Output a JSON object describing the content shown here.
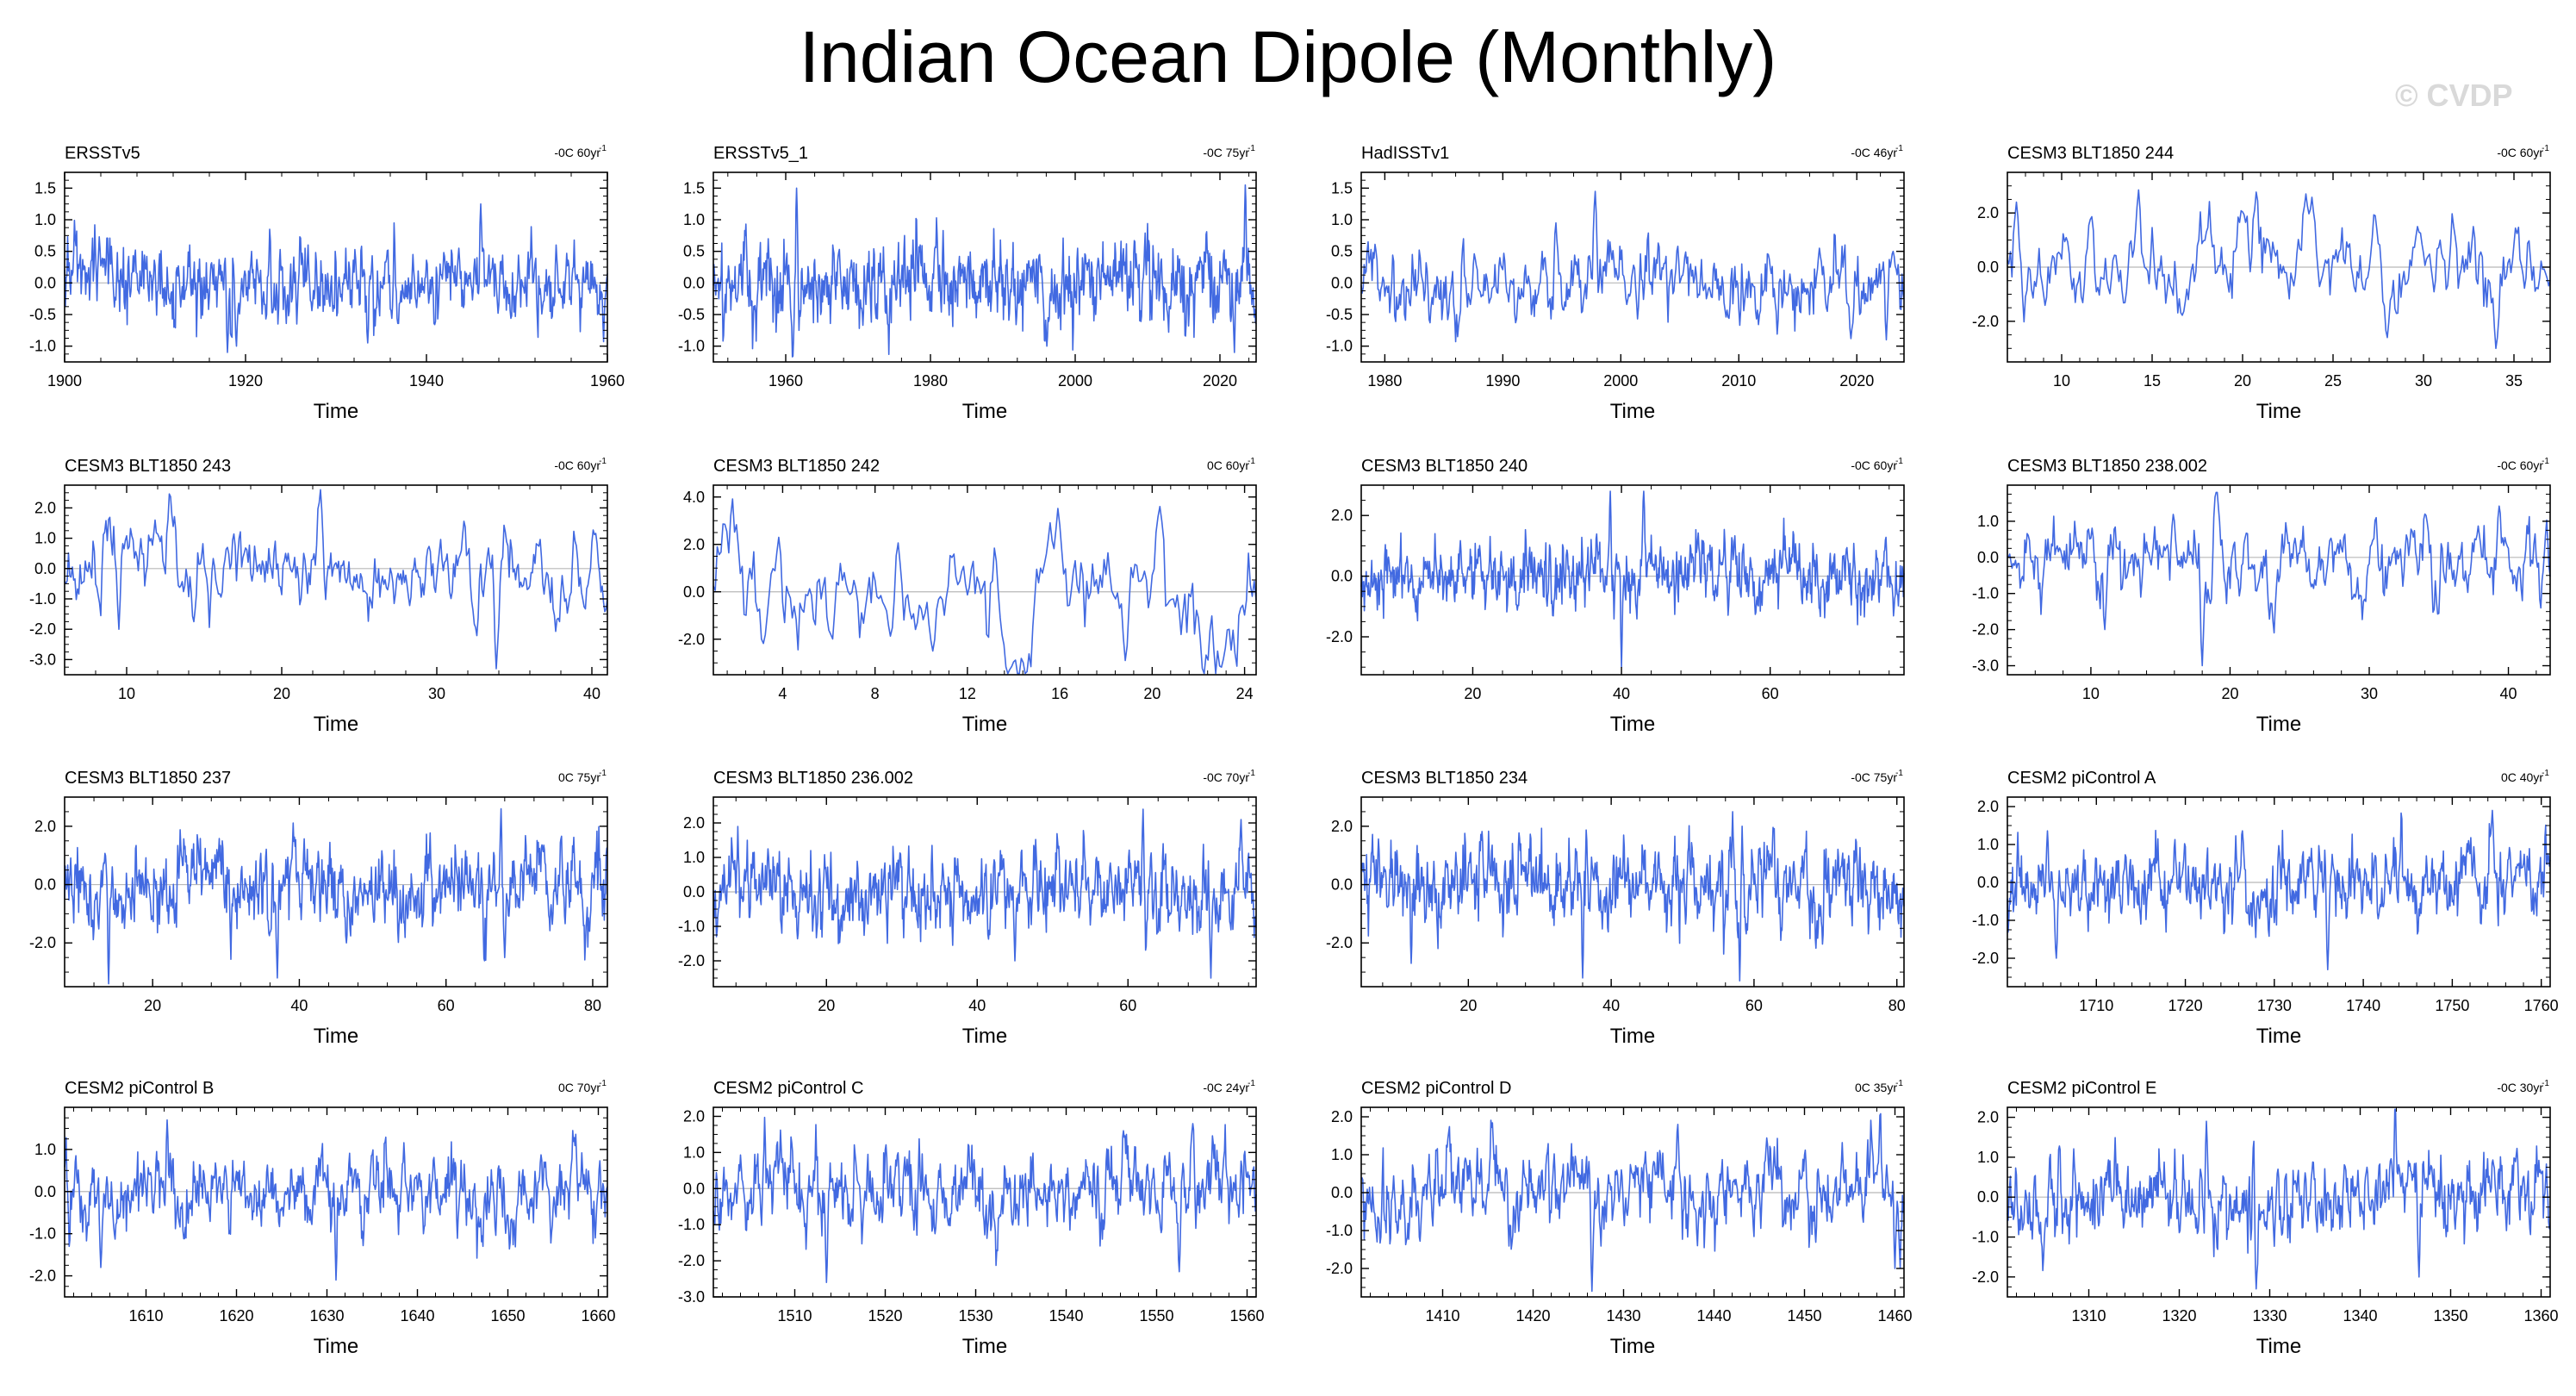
{
  "title": "Indian Ocean Dipole (Monthly)",
  "watermark": "© CVDP",
  "line_color": "#4169e1",
  "chart_data": [
    {
      "type": "line",
      "title": "ERSSTv5",
      "trend": "-0C 60yr",
      "trend_unit_sup": "-1",
      "xlabel": "Time",
      "xlim": [
        1900,
        1960
      ],
      "xticks": [
        1900,
        1920,
        1940,
        1960
      ],
      "ylim": [
        -1.25,
        1.75
      ],
      "yticks": [
        -1.0,
        -0.5,
        0.0,
        0.5,
        1.0,
        1.5
      ],
      "series_seed": 1,
      "amplitude": 0.35,
      "smooth": 0.45,
      "peaks": [
        {
          "x": 1933.5,
          "y": -0.95
        },
        {
          "x": 1946.0,
          "y": 1.25
        },
        {
          "x": 1918.0,
          "y": -1.1
        },
        {
          "x": 1919.0,
          "y": -1.0
        }
      ],
      "x": [],
      "values": []
    },
    {
      "type": "line",
      "title": "ERSSTv5_1",
      "trend": "-0C 75yr",
      "trend_unit_sup": "-1",
      "xlabel": "Time",
      "xlim": [
        1950,
        2025
      ],
      "xticks": [
        1960,
        1980,
        2000,
        2020
      ],
      "ylim": [
        -1.25,
        1.75
      ],
      "yticks": [
        -1.0,
        -0.5,
        0.0,
        0.5,
        1.0,
        1.5
      ],
      "series_seed": 2,
      "amplitude": 0.35,
      "smooth": 0.45,
      "peaks": [
        {
          "x": 2023.5,
          "y": 1.55
        },
        {
          "x": 2022.0,
          "y": -1.1
        },
        {
          "x": 1961.5,
          "y": 1.5
        }
      ],
      "x": [],
      "values": []
    },
    {
      "type": "line",
      "title": "HadISSTv1",
      "trend": "-0C 46yr",
      "trend_unit_sup": "-1",
      "xlabel": "Time",
      "xlim": [
        1978,
        2024
      ],
      "xticks": [
        1980,
        1990,
        2000,
        2010,
        2020
      ],
      "ylim": [
        -1.25,
        1.75
      ],
      "yticks": [
        -1.0,
        -0.5,
        0.0,
        0.5,
        1.0,
        1.5
      ],
      "series_seed": 3,
      "amplitude": 0.3,
      "smooth": 0.55,
      "peaks": [
        {
          "x": 1997.8,
          "y": 1.45
        },
        {
          "x": 1994.5,
          "y": 0.95
        },
        {
          "x": 2022.5,
          "y": -0.9
        }
      ],
      "x": [],
      "values": []
    },
    {
      "type": "line",
      "title": "CESM3 BLT1850 244",
      "trend": "-0C 60yr",
      "trend_unit_sup": "-1",
      "xlabel": "Time",
      "xlim": [
        7,
        37
      ],
      "xticks": [
        10,
        15,
        20,
        25,
        30,
        35
      ],
      "ylim": [
        -3.5,
        3.5
      ],
      "yticks": [
        -2.0,
        0.0,
        2.0
      ],
      "series_seed": 4,
      "amplitude": 0.8,
      "smooth": 0.8,
      "peaks": [
        {
          "x": 23.5,
          "y": 2.7
        },
        {
          "x": 34.0,
          "y": -3.0
        },
        {
          "x": 7.5,
          "y": 2.4
        },
        {
          "x": 28.0,
          "y": -2.6
        }
      ],
      "x": [],
      "values": []
    },
    {
      "type": "line",
      "title": "CESM3 BLT1850 243",
      "trend": "-0C 60yr",
      "trend_unit_sup": "-1",
      "xlabel": "Time",
      "xlim": [
        6,
        41
      ],
      "xticks": [
        10,
        20,
        30,
        40
      ],
      "ylim": [
        -3.5,
        2.75
      ],
      "yticks": [
        -3.0,
        -2.0,
        -1.0,
        0.0,
        1.0,
        2.0
      ],
      "series_seed": 5,
      "amplitude": 0.65,
      "smooth": 0.75,
      "peaks": [
        {
          "x": 22.5,
          "y": 2.6
        },
        {
          "x": 33.8,
          "y": -3.3
        },
        {
          "x": 9.5,
          "y": -2.0
        }
      ],
      "x": [],
      "values": []
    },
    {
      "type": "line",
      "title": "CESM3 BLT1850 242",
      "trend": "0C 60yr",
      "trend_unit_sup": "-1",
      "xlabel": "Time",
      "xlim": [
        1,
        24.5
      ],
      "xticks": [
        4,
        8,
        12,
        16,
        20,
        24
      ],
      "ylim": [
        -3.5,
        4.5
      ],
      "yticks": [
        -2.0,
        0.0,
        2.0,
        4.0
      ],
      "series_seed": 6,
      "amplitude": 1.1,
      "smooth": 0.9,
      "peaks": [
        {
          "x": 20.3,
          "y": 3.6
        },
        {
          "x": 18.8,
          "y": -2.9
        },
        {
          "x": 10.5,
          "y": -2.5
        },
        {
          "x": 3.8,
          "y": 2.3
        }
      ],
      "x": [],
      "values": []
    },
    {
      "type": "line",
      "title": "CESM3 BLT1850 240",
      "trend": "-0C 60yr",
      "trend_unit_sup": "-1",
      "xlabel": "Time",
      "xlim": [
        5,
        78
      ],
      "xticks": [
        20,
        40,
        60
      ],
      "ylim": [
        -3.25,
        3.0
      ],
      "yticks": [
        -2.0,
        0.0,
        2.0
      ],
      "series_seed": 7,
      "amplitude": 0.6,
      "smooth": 0.55,
      "peaks": [
        {
          "x": 38.5,
          "y": 2.8
        },
        {
          "x": 43.0,
          "y": 2.8
        },
        {
          "x": 40.0,
          "y": -3.0
        }
      ],
      "x": [],
      "values": []
    },
    {
      "type": "line",
      "title": "CESM3 BLT1850 238.002",
      "trend": "-0C 60yr",
      "trend_unit_sup": "-1",
      "xlabel": "Time",
      "xlim": [
        4,
        43
      ],
      "xticks": [
        10,
        20,
        30,
        40
      ],
      "ylim": [
        -3.25,
        2.0
      ],
      "yticks": [
        -3.0,
        -2.0,
        -1.0,
        0.0,
        1.0
      ],
      "series_seed": 8,
      "amplitude": 0.55,
      "smooth": 0.7,
      "peaks": [
        {
          "x": 18.0,
          "y": -3.0
        },
        {
          "x": 19.0,
          "y": 1.8
        },
        {
          "x": 11.0,
          "y": -2.0
        }
      ],
      "x": [],
      "values": []
    },
    {
      "type": "line",
      "title": "CESM3 BLT1850 237",
      "trend": "0C 75yr",
      "trend_unit_sup": "-1",
      "xlabel": "Time",
      "xlim": [
        8,
        82
      ],
      "xticks": [
        20,
        40,
        60,
        80
      ],
      "ylim": [
        -3.5,
        3.0
      ],
      "yticks": [
        -2.0,
        0.0,
        2.0
      ],
      "series_seed": 9,
      "amplitude": 0.75,
      "smooth": 0.6,
      "peaks": [
        {
          "x": 67.5,
          "y": 2.6
        },
        {
          "x": 14.0,
          "y": -3.4
        },
        {
          "x": 37.0,
          "y": -3.2
        },
        {
          "x": 68.0,
          "y": -2.5
        }
      ],
      "x": [],
      "values": []
    },
    {
      "type": "line",
      "title": "CESM3 BLT1850 236.002",
      "trend": "-0C 70yr",
      "trend_unit_sup": "-1",
      "xlabel": "Time",
      "xlim": [
        5,
        77
      ],
      "xticks": [
        20,
        40,
        60
      ],
      "ylim": [
        -2.75,
        2.75
      ],
      "yticks": [
        -2.0,
        -1.0,
        0.0,
        1.0,
        2.0
      ],
      "series_seed": 10,
      "amplitude": 0.6,
      "smooth": 0.6,
      "peaks": [
        {
          "x": 62.0,
          "y": 2.4
        },
        {
          "x": 71.0,
          "y": -2.5
        },
        {
          "x": 45.0,
          "y": -2.0
        },
        {
          "x": 75.0,
          "y": 2.1
        }
      ],
      "x": [],
      "values": []
    },
    {
      "type": "line",
      "title": "CESM3 BLT1850 234",
      "trend": "-0C 75yr",
      "trend_unit_sup": "-1",
      "xlabel": "Time",
      "xlim": [
        5,
        81
      ],
      "xticks": [
        20,
        40,
        60,
        80
      ],
      "ylim": [
        -3.5,
        3.0
      ],
      "yticks": [
        -2.0,
        0.0,
        2.0
      ],
      "series_seed": 11,
      "amplitude": 0.75,
      "smooth": 0.6,
      "peaks": [
        {
          "x": 58.0,
          "y": -3.3
        },
        {
          "x": 57.0,
          "y": 2.5
        },
        {
          "x": 36.0,
          "y": -3.2
        },
        {
          "x": 12.0,
          "y": -2.7
        }
      ],
      "x": [],
      "values": []
    },
    {
      "type": "line",
      "title": "CESM2 piControl A",
      "trend": "0C 40yr",
      "trend_unit_sup": "-1",
      "xlabel": "Time",
      "xlim": [
        1700,
        1761
      ],
      "xticks": [
        1710,
        1720,
        1730,
        1740,
        1750,
        1760
      ],
      "ylim": [
        -2.75,
        2.25
      ],
      "yticks": [
        -2.0,
        -1.0,
        0.0,
        1.0,
        2.0
      ],
      "series_seed": 12,
      "amplitude": 0.55,
      "smooth": 0.6,
      "peaks": [
        {
          "x": 1754.5,
          "y": 1.9
        },
        {
          "x": 1705.5,
          "y": -2.0
        },
        {
          "x": 1736.0,
          "y": -2.3
        }
      ],
      "x": [],
      "values": []
    },
    {
      "type": "line",
      "title": "CESM2 piControl B",
      "trend": "0C 70yr",
      "trend_unit_sup": "-1",
      "xlabel": "Time",
      "xlim": [
        1601,
        1661
      ],
      "xticks": [
        1610,
        1620,
        1630,
        1640,
        1650,
        1660
      ],
      "ylim": [
        -2.5,
        2.0
      ],
      "yticks": [
        -2.0,
        -1.0,
        0.0,
        1.0
      ],
      "series_seed": 13,
      "amplitude": 0.5,
      "smooth": 0.55,
      "peaks": [
        {
          "x": 1612.3,
          "y": 1.7
        },
        {
          "x": 1631.0,
          "y": -2.1
        },
        {
          "x": 1605.0,
          "y": -1.8
        }
      ],
      "x": [],
      "values": []
    },
    {
      "type": "line",
      "title": "CESM2 piControl C",
      "trend": "-0C 24yr",
      "trend_unit_sup": "-1",
      "xlabel": "Time",
      "xlim": [
        1501,
        1561
      ],
      "xticks": [
        1510,
        1520,
        1530,
        1540,
        1550,
        1560
      ],
      "ylim": [
        -3.0,
        2.25
      ],
      "yticks": [
        -3.0,
        -2.0,
        -1.0,
        0.0,
        1.0,
        2.0
      ],
      "series_seed": 14,
      "amplitude": 0.6,
      "smooth": 0.6,
      "peaks": [
        {
          "x": 1554.0,
          "y": 1.8
        },
        {
          "x": 1513.5,
          "y": -2.6
        },
        {
          "x": 1552.5,
          "y": -2.3
        }
      ],
      "x": [],
      "values": []
    },
    {
      "type": "line",
      "title": "CESM2 piControl D",
      "trend": "0C 35yr",
      "trend_unit_sup": "-1",
      "xlabel": "Time",
      "xlim": [
        1401,
        1461
      ],
      "xticks": [
        1410,
        1420,
        1430,
        1440,
        1450,
        1460
      ],
      "ylim": [
        -2.75,
        2.25
      ],
      "yticks": [
        -2.0,
        -1.0,
        0.0,
        1.0,
        2.0
      ],
      "series_seed": 15,
      "amplitude": 0.55,
      "smooth": 0.6,
      "peaks": [
        {
          "x": 1426.5,
          "y": -2.6
        },
        {
          "x": 1460.0,
          "y": -2.0
        },
        {
          "x": 1436.0,
          "y": 1.8
        }
      ],
      "x": [],
      "values": []
    },
    {
      "type": "line",
      "title": "CESM2 piControl E",
      "trend": "-0C 30yr",
      "trend_unit_sup": "-1",
      "xlabel": "Time",
      "xlim": [
        1301,
        1361
      ],
      "xticks": [
        1310,
        1320,
        1330,
        1340,
        1350,
        1360
      ],
      "ylim": [
        -2.5,
        2.25
      ],
      "yticks": [
        -2.0,
        -1.0,
        0.0,
        1.0,
        2.0
      ],
      "series_seed": 16,
      "amplitude": 0.55,
      "smooth": 0.6,
      "peaks": [
        {
          "x": 1323.0,
          "y": 1.9
        },
        {
          "x": 1328.5,
          "y": -2.3
        },
        {
          "x": 1346.5,
          "y": -2.0
        }
      ],
      "x": [],
      "values": []
    }
  ]
}
